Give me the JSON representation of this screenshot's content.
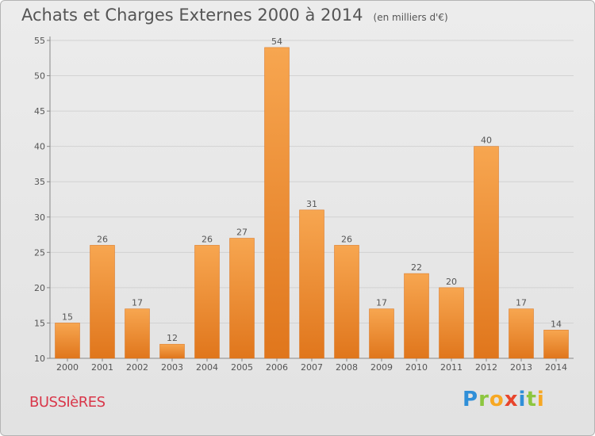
{
  "header": {
    "title": "Achats et Charges Externes 2000 à 2014",
    "unit": "(en milliers d'€)"
  },
  "footer": {
    "commune": "BUSSIèRES",
    "brand_letters": [
      "P",
      "r",
      "o",
      "x",
      "i",
      "t",
      "i"
    ]
  },
  "colors": {
    "bar_top": "#f7a650",
    "bar_bottom": "#e0761c",
    "axis": "#888888",
    "grid": "#d2d2d2",
    "text": "#555555"
  },
  "chart_data": {
    "type": "bar",
    "title": "Achats et Charges Externes 2000 à 2014",
    "subtitle": "(en milliers d'€)",
    "xlabel": "",
    "ylabel": "",
    "categories": [
      "2000",
      "2001",
      "2002",
      "2003",
      "2004",
      "2005",
      "2006",
      "2007",
      "2008",
      "2009",
      "2010",
      "2011",
      "2012",
      "2013",
      "2014"
    ],
    "values": [
      15,
      26,
      17,
      12,
      26,
      27,
      54,
      31,
      26,
      17,
      22,
      20,
      40,
      17,
      14
    ],
    "ylim": [
      10,
      55
    ],
    "yticks": [
      10,
      15,
      20,
      25,
      30,
      35,
      40,
      45,
      50,
      55
    ],
    "grid": true,
    "legend": "none"
  }
}
